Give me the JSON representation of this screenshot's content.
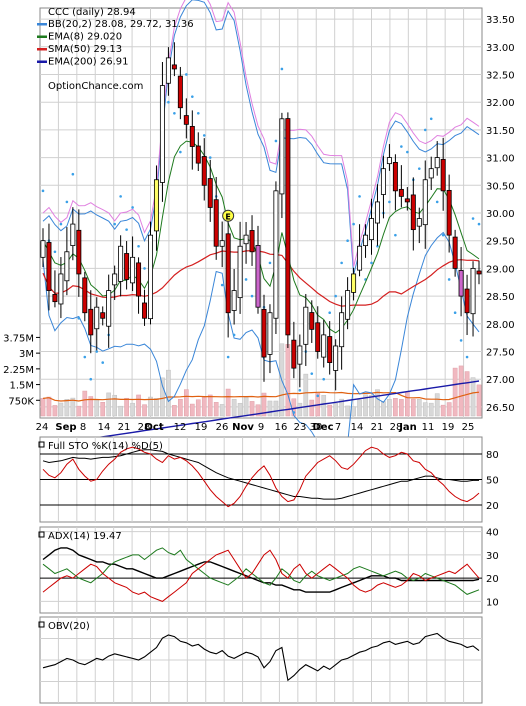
{
  "chart_data": [
    {
      "type": "candlestick",
      "panel": "price",
      "symbol_label": "CCC (daily) 28.94",
      "legend": [
        {
          "label": "BB(20,2) 28.08, 29.72, 31.36",
          "color": "#3a86d8"
        },
        {
          "label": "EMA(8) 29.020",
          "color": "#1e7a1e"
        },
        {
          "label": "SMA(50) 29.13",
          "color": "#d42020"
        },
        {
          "label": "EMA(200) 26.91",
          "color": "#1a1aa8"
        }
      ],
      "watermark": "OptionChance.com",
      "y_ticks": [
        "33.50",
        "33.00",
        "32.50",
        "32.00",
        "31.50",
        "31.00",
        "30.50",
        "30.00",
        "29.50",
        "29.00",
        "28.50",
        "28.00",
        "27.50",
        "27.00",
        "26.50"
      ],
      "ylim": [
        26.3,
        33.7
      ],
      "x_tick_labels": [
        "24",
        "Sep",
        "8",
        "14",
        "21",
        "28",
        "Oct",
        "12",
        "19",
        "26",
        "Nov",
        "9",
        "16",
        "23",
        "30",
        "Dec",
        "7",
        "14",
        "21",
        "28",
        "Jan",
        "11",
        "19",
        "25"
      ],
      "colors": {
        "up": "#ffffff",
        "down": "#cc0000",
        "outline": "#000000",
        "highlight_bar": "#ffff66",
        "highlight_bar2": "#cc66cc",
        "upper_pink": "#e080e0"
      },
      "volume": {
        "y_ticks": [
          "3.75M",
          "3M",
          "2.25M",
          "1.5M",
          "750K"
        ],
        "ylim": [
          0,
          4200000
        ],
        "avg_line_color": "#e06010",
        "bar_color": "#f0b8c0",
        "bar_color_up": "#d8d8d8"
      },
      "closes": [
        29.5,
        28.6,
        28.4,
        28.9,
        29.3,
        29.8,
        28.9,
        28.2,
        27.8,
        28.3,
        28.1,
        28.6,
        28.9,
        29.4,
        28.8,
        29.2,
        28.5,
        28.1,
        29.6,
        30.6,
        32.3,
        32.8,
        32.6,
        31.9,
        31.6,
        31.2,
        30.9,
        30.5,
        30.1,
        29.4,
        29.5,
        28.2,
        28.6,
        29.4,
        29.6,
        29.3,
        28.3,
        27.4,
        28.2,
        30.4,
        31.7,
        27.8,
        27.2,
        27.6,
        28.3,
        27.9,
        27.5,
        27.8,
        27.3,
        27.6,
        28.2,
        28.6,
        28.9,
        29.4,
        29.6,
        29.9,
        30.2,
        30.8,
        31.0,
        30.4,
        30.3,
        30.2,
        29.7,
        29.9,
        30.6,
        30.8,
        31.0,
        30.4,
        29.6,
        29.0,
        28.5,
        28.2,
        29.0,
        28.9
      ]
    },
    {
      "type": "line",
      "panel": "stochastic",
      "label": "Full STO %K(14) %D(5)",
      "y_ticks": [
        "80",
        "50",
        "20"
      ],
      "ylim": [
        0,
        100
      ],
      "series": [
        {
          "name": "%K",
          "color": "#000000",
          "values": [
            72,
            70,
            71,
            72,
            74,
            76,
            75,
            75,
            74,
            75,
            76,
            76,
            77,
            78,
            80,
            82,
            84,
            85,
            85,
            84,
            83,
            80,
            78,
            76,
            74,
            72,
            70,
            66,
            62,
            58,
            55,
            52,
            50,
            48,
            46,
            44,
            42,
            40,
            38,
            36,
            34,
            32,
            30,
            30,
            29,
            28,
            28,
            27,
            27,
            27,
            28,
            30,
            32,
            34,
            36,
            38,
            40,
            42,
            44,
            46,
            48,
            48,
            50,
            52,
            54,
            54,
            52,
            50,
            50,
            49,
            48,
            48,
            49,
            49
          ]
        },
        {
          "name": "%D",
          "color": "#cc0000",
          "values": [
            62,
            55,
            52,
            58,
            68,
            74,
            62,
            54,
            48,
            50,
            60,
            68,
            74,
            82,
            86,
            88,
            86,
            82,
            80,
            74,
            70,
            78,
            74,
            76,
            72,
            66,
            58,
            48,
            38,
            30,
            24,
            18,
            22,
            30,
            42,
            52,
            60,
            66,
            55,
            40,
            30,
            24,
            26,
            38,
            54,
            62,
            70,
            74,
            78,
            72,
            64,
            62,
            68,
            76,
            84,
            88,
            86,
            80,
            76,
            78,
            82,
            80,
            72,
            70,
            62,
            58,
            50,
            44,
            36,
            30,
            26,
            24,
            28,
            34
          ]
        }
      ]
    },
    {
      "type": "line",
      "panel": "adx",
      "label": "ADX(14) 19.47",
      "y_ticks": [
        "40",
        "30",
        "20",
        "10"
      ],
      "ylim": [
        5,
        42
      ],
      "series": [
        {
          "name": "ADX",
          "color": "#000000",
          "values": [
            28,
            30,
            32,
            33,
            33,
            32,
            30,
            29,
            28,
            27,
            27,
            26,
            26,
            25,
            24,
            24,
            23,
            22,
            21,
            20,
            20,
            21,
            22,
            23,
            24,
            25,
            26,
            27,
            27,
            26,
            25,
            24,
            23,
            22,
            21,
            20,
            19,
            18,
            18,
            17,
            17,
            16,
            15,
            15,
            14,
            14,
            14,
            14,
            14,
            15,
            16,
            17,
            18,
            19,
            20,
            21,
            21,
            21,
            20,
            20,
            19,
            19,
            19,
            19,
            19,
            19,
            19,
            19,
            19,
            19,
            19,
            19,
            19,
            19.5
          ]
        },
        {
          "name": "+DI",
          "color": "#1e7a1e",
          "values": [
            26,
            24,
            22,
            23,
            24,
            22,
            20,
            19,
            18,
            20,
            22,
            25,
            27,
            28,
            29,
            30,
            30,
            28,
            30,
            32,
            33,
            31,
            30,
            32,
            28,
            26,
            24,
            22,
            20,
            19,
            18,
            17,
            19,
            21,
            24,
            22,
            20,
            18,
            17,
            20,
            24,
            22,
            19,
            18,
            21,
            23,
            21,
            20,
            19,
            20,
            21,
            22,
            24,
            25,
            24,
            23,
            22,
            21,
            22,
            23,
            22,
            20,
            19,
            20,
            22,
            21,
            20,
            19,
            18,
            17,
            15,
            13,
            14,
            15
          ]
        },
        {
          "name": "-DI",
          "color": "#cc0000",
          "values": [
            14,
            16,
            18,
            20,
            21,
            20,
            22,
            24,
            26,
            25,
            22,
            20,
            18,
            17,
            16,
            14,
            13,
            14,
            12,
            11,
            10,
            12,
            14,
            16,
            18,
            22,
            24,
            26,
            28,
            30,
            31,
            32,
            28,
            24,
            20,
            22,
            26,
            30,
            32,
            28,
            22,
            20,
            24,
            26,
            22,
            20,
            22,
            24,
            26,
            24,
            22,
            20,
            17,
            15,
            14,
            15,
            17,
            18,
            17,
            16,
            17,
            19,
            22,
            21,
            19,
            20,
            21,
            22,
            23,
            22,
            24,
            26,
            23,
            20
          ]
        }
      ]
    },
    {
      "type": "line",
      "panel": "obv",
      "label": "OBV(20)",
      "ylim": [
        0,
        100
      ],
      "series": [
        {
          "name": "OBV",
          "color": "#000000",
          "values": [
            40,
            42,
            44,
            48,
            52,
            50,
            46,
            44,
            48,
            52,
            50,
            55,
            58,
            56,
            54,
            52,
            50,
            54,
            60,
            66,
            78,
            82,
            80,
            74,
            72,
            68,
            70,
            64,
            60,
            58,
            62,
            55,
            52,
            56,
            60,
            58,
            54,
            40,
            48,
            62,
            66,
            24,
            30,
            38,
            44,
            40,
            36,
            42,
            38,
            44,
            50,
            52,
            56,
            60,
            62,
            66,
            68,
            72,
            74,
            70,
            72,
            74,
            70,
            72,
            80,
            82,
            84,
            78,
            74,
            72,
            70,
            66,
            68,
            62
          ]
        }
      ]
    }
  ]
}
